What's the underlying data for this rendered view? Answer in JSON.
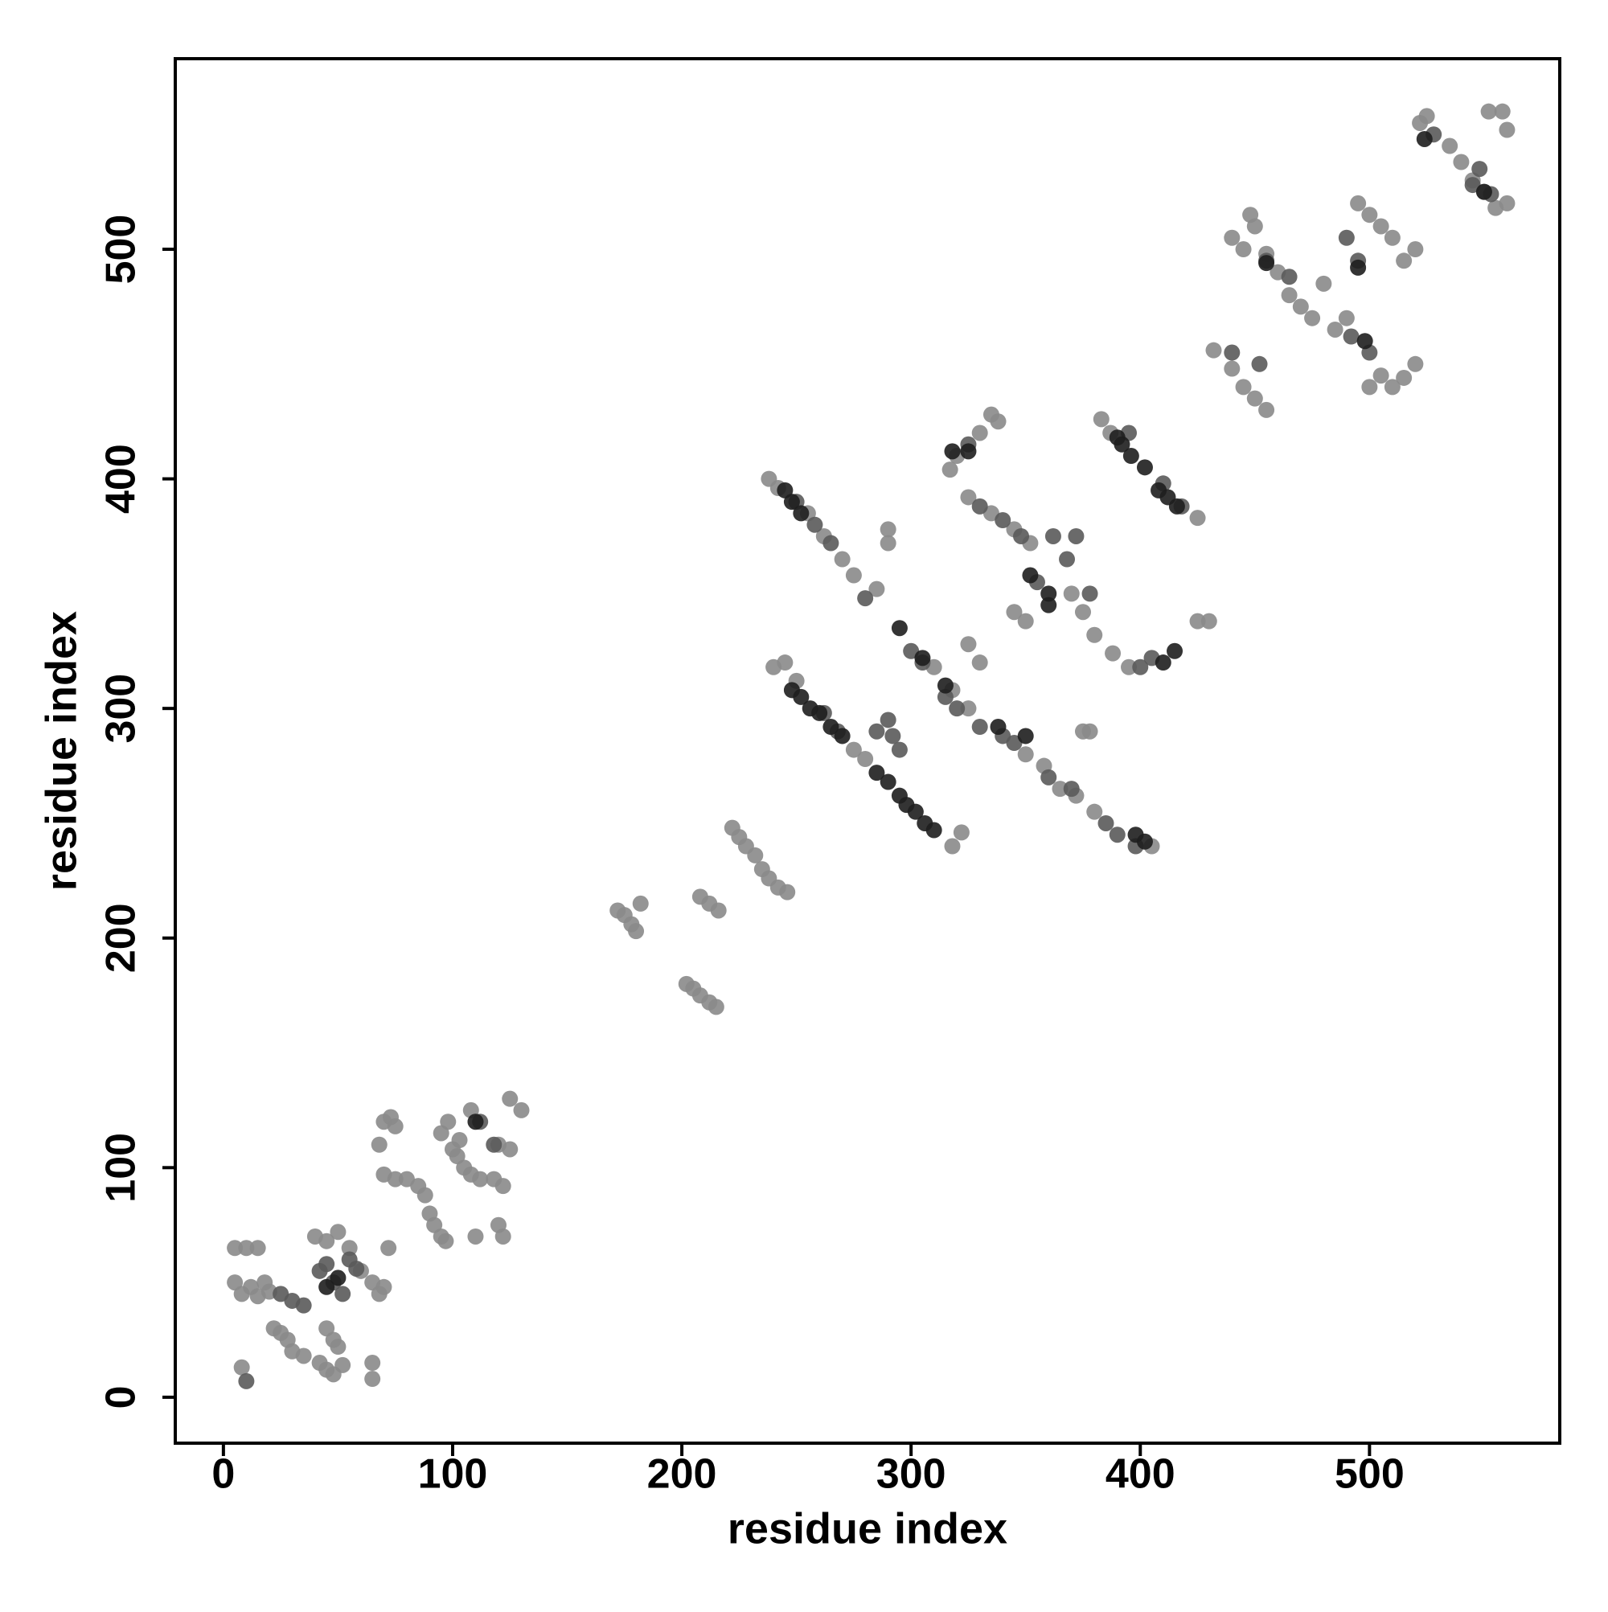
{
  "chart_data": {
    "type": "scatter",
    "xlabel": "residue index",
    "ylabel": "residue index",
    "xlim": [
      -21,
      583
    ],
    "ylim": [
      -20,
      583
    ],
    "xticks": [
      0,
      100,
      200,
      300,
      400,
      500
    ],
    "yticks": [
      0,
      100,
      200,
      300,
      400,
      500
    ],
    "series": [
      {
        "color": "#8a8a8a",
        "x": [
          5,
          8,
          12,
          15,
          18,
          20,
          22,
          25,
          28,
          30,
          35,
          42,
          45,
          48,
          52,
          5,
          10,
          15,
          8,
          65,
          65,
          40,
          45,
          50,
          55,
          60,
          65,
          68,
          70,
          72,
          45,
          48,
          50,
          68,
          70,
          73,
          75,
          70,
          75,
          80,
          85,
          88,
          90,
          92,
          95,
          97,
          95,
          98,
          100,
          102,
          105,
          108,
          112,
          118,
          122,
          110,
          120,
          122,
          125,
          120,
          125,
          130,
          108,
          103,
          172,
          175,
          178,
          180,
          182,
          202,
          205,
          208,
          212,
          215,
          208,
          212,
          216,
          222,
          225,
          228,
          232,
          235,
          238,
          242,
          246,
          290,
          290,
          350,
          345,
          325,
          330,
          375,
          378,
          238,
          242,
          255,
          262,
          270,
          275,
          285,
          240,
          245,
          250,
          275,
          280,
          310,
          318,
          325,
          350,
          358,
          365,
          372,
          380,
          405,
          318,
          322,
          317,
          320,
          330,
          335,
          338,
          325,
          335,
          345,
          352,
          370,
          375,
          380,
          388,
          395,
          425,
          430,
          383,
          387,
          425,
          432,
          440,
          445,
          450,
          455,
          440,
          445,
          450,
          448,
          455,
          460,
          465,
          470,
          475,
          480,
          485,
          490,
          500,
          505,
          510,
          515,
          520,
          495,
          500,
          505,
          510,
          515,
          520,
          522,
          525,
          535,
          540,
          545,
          550,
          552,
          558,
          560,
          560,
          555
        ],
        "y": [
          50,
          45,
          48,
          44,
          50,
          46,
          30,
          28,
          25,
          20,
          18,
          15,
          12,
          10,
          14,
          65,
          65,
          65,
          13,
          15,
          8,
          70,
          68,
          72,
          65,
          55,
          50,
          45,
          48,
          65,
          30,
          25,
          22,
          110,
          120,
          122,
          118,
          97,
          95,
          95,
          92,
          88,
          80,
          75,
          70,
          68,
          115,
          120,
          108,
          105,
          100,
          97,
          95,
          95,
          92,
          70,
          75,
          70,
          108,
          110,
          130,
          125,
          125,
          112,
          212,
          210,
          206,
          203,
          215,
          180,
          178,
          175,
          172,
          170,
          218,
          215,
          212,
          248,
          244,
          240,
          236,
          230,
          226,
          222,
          220,
          378,
          372,
          338,
          342,
          328,
          320,
          290,
          290,
          400,
          396,
          385,
          375,
          365,
          358,
          352,
          318,
          320,
          312,
          282,
          278,
          318,
          308,
          300,
          280,
          275,
          265,
          262,
          255,
          240,
          240,
          246,
          404,
          410,
          420,
          428,
          425,
          392,
          385,
          378,
          372,
          350,
          342,
          332,
          324,
          318,
          338,
          338,
          426,
          420,
          383,
          456,
          448,
          440,
          435,
          430,
          505,
          500,
          510,
          515,
          498,
          490,
          480,
          475,
          470,
          485,
          465,
          470,
          440,
          445,
          440,
          444,
          450,
          520,
          515,
          510,
          505,
          495,
          500,
          555,
          558,
          545,
          538,
          530,
          525,
          560,
          560,
          552,
          520,
          518
        ]
      },
      {
        "color": "#5a5a5a",
        "x": [
          42,
          48,
          52,
          55,
          58,
          35,
          30,
          25,
          45,
          10,
          112,
          118,
          250,
          258,
          265,
          280,
          285,
          290,
          292,
          295,
          268,
          262,
          300,
          305,
          315,
          330,
          340,
          345,
          360,
          370,
          385,
          390,
          398,
          320,
          325,
          330,
          340,
          348,
          355,
          362,
          368,
          372,
          378,
          400,
          405,
          395,
          410,
          418,
          440,
          452,
          455,
          465,
          490,
          495,
          492,
          500,
          528,
          545,
          553,
          548
        ],
        "y": [
          55,
          50,
          45,
          60,
          56,
          40,
          42,
          45,
          58,
          7,
          120,
          110,
          390,
          380,
          372,
          348,
          290,
          295,
          288,
          282,
          290,
          298,
          325,
          320,
          305,
          292,
          288,
          285,
          270,
          265,
          250,
          245,
          240,
          300,
          415,
          388,
          382,
          375,
          355,
          375,
          365,
          375,
          350,
          318,
          322,
          420,
          398,
          388,
          455,
          450,
          495,
          488,
          505,
          495,
          462,
          455,
          550,
          528,
          524,
          535
        ]
      },
      {
        "color": "#1e1e1e",
        "x": [
          50,
          45,
          110,
          245,
          248,
          252,
          248,
          252,
          256,
          260,
          265,
          270,
          285,
          290,
          295,
          298,
          302,
          306,
          310,
          295,
          305,
          315,
          338,
          350,
          352,
          360,
          390,
          392,
          396,
          402,
          408,
          412,
          416,
          398,
          402,
          325,
          318,
          360,
          410,
          415,
          455,
          495,
          498,
          524,
          550
        ],
        "y": [
          52,
          48,
          120,
          395,
          390,
          385,
          308,
          305,
          300,
          298,
          292,
          288,
          272,
          268,
          262,
          258,
          255,
          250,
          247,
          335,
          322,
          310,
          292,
          288,
          358,
          350,
          418,
          415,
          410,
          405,
          395,
          392,
          388,
          245,
          242,
          412,
          412,
          345,
          320,
          325,
          494,
          492,
          460,
          548,
          525
        ]
      }
    ]
  }
}
